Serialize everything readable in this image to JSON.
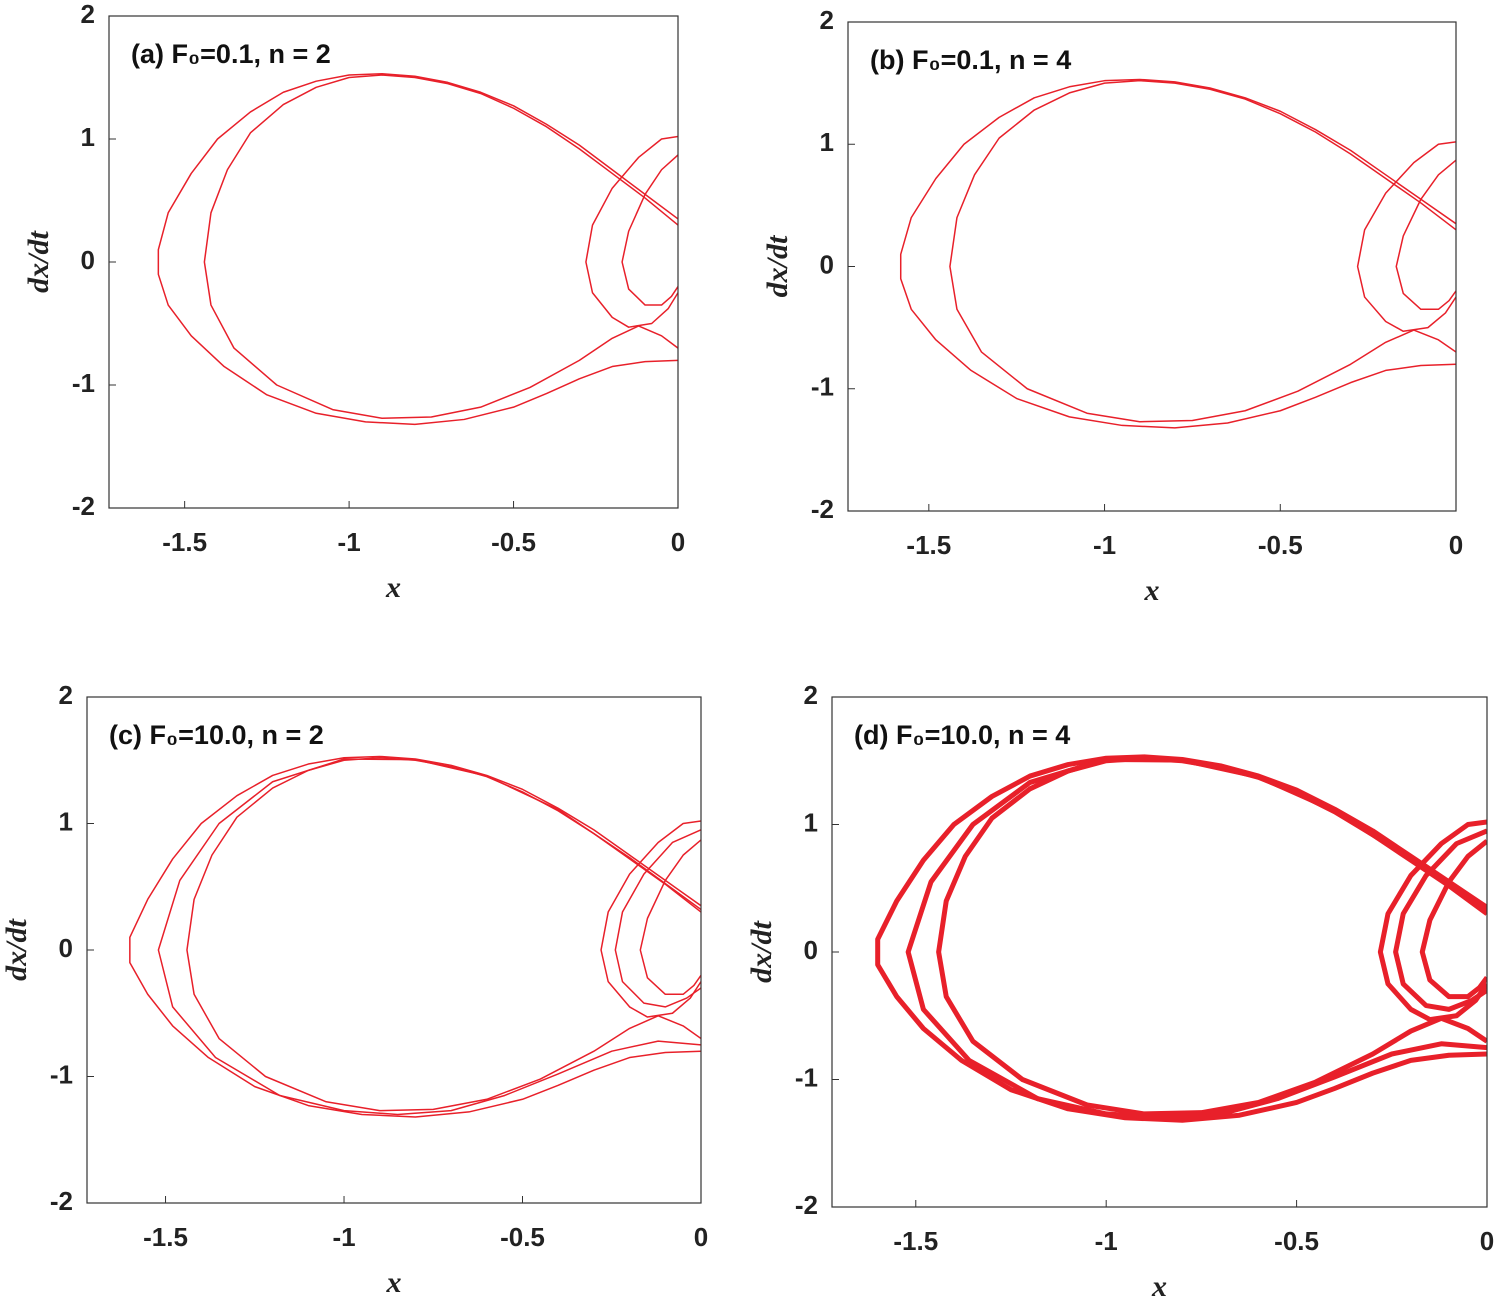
{
  "chart_data": [
    {
      "type": "line",
      "annotation": "(a) F₀=0.1, n = 2",
      "x_label": "x",
      "y_label": "dx/dt",
      "color": "#e8202a",
      "line_width": 1.5,
      "xlim": [
        -1.73,
        0
      ],
      "xticks": [
        -1.5,
        -1,
        -0.5,
        0
      ],
      "ylim": [
        -2,
        2
      ],
      "yticks": [
        -2,
        -1,
        0,
        1,
        2
      ],
      "series": [
        {
          "x": [
            0,
            -0.1,
            -0.2,
            -0.3,
            -0.4,
            -0.5,
            -0.6,
            -0.7,
            -0.8,
            -0.9,
            -1.0,
            -1.1,
            -1.2,
            -1.3,
            -1.4,
            -1.48,
            -1.55,
            -1.58,
            -1.58,
            -1.55,
            -1.48,
            -1.38,
            -1.25,
            -1.1,
            -0.95,
            -0.8,
            -0.65,
            -0.5,
            -0.4,
            -0.3,
            -0.2,
            -0.1,
            0
          ],
          "values": [
            0.35,
            0.55,
            0.75,
            0.95,
            1.12,
            1.27,
            1.38,
            1.46,
            1.51,
            1.53,
            1.52,
            1.47,
            1.38,
            1.22,
            1.0,
            0.72,
            0.4,
            0.1,
            -0.1,
            -0.35,
            -0.6,
            -0.85,
            -1.08,
            -1.23,
            -1.3,
            -1.32,
            -1.28,
            -1.18,
            -1.07,
            -0.95,
            -0.85,
            -0.81,
            -0.8
          ]
        },
        {
          "x": [
            0,
            -0.1,
            -0.2,
            -0.3,
            -0.4,
            -0.5,
            -0.6,
            -0.7,
            -0.8,
            -0.9,
            -1.0,
            -1.1,
            -1.2,
            -1.3,
            -1.37,
            -1.42,
            -1.44,
            -1.42,
            -1.35,
            -1.22,
            -1.05,
            -0.9,
            -0.75,
            -0.6,
            -0.45,
            -0.3,
            -0.2,
            -0.12,
            -0.05,
            0
          ],
          "values": [
            0.3,
            0.52,
            0.72,
            0.92,
            1.1,
            1.25,
            1.37,
            1.45,
            1.5,
            1.52,
            1.5,
            1.42,
            1.28,
            1.05,
            0.75,
            0.4,
            0.0,
            -0.35,
            -0.7,
            -1.0,
            -1.2,
            -1.27,
            -1.26,
            -1.18,
            -1.02,
            -0.8,
            -0.62,
            -0.52,
            -0.6,
            -0.7
          ]
        },
        {
          "x": [
            0,
            -0.05,
            -0.12,
            -0.2,
            -0.26,
            -0.28,
            -0.26,
            -0.2,
            -0.15,
            -0.08,
            -0.03,
            0
          ],
          "values": [
            1.02,
            1.0,
            0.85,
            0.6,
            0.3,
            0.0,
            -0.25,
            -0.45,
            -0.53,
            -0.5,
            -0.38,
            -0.25
          ]
        },
        {
          "x": [
            0,
            -0.05,
            -0.1,
            -0.15,
            -0.17,
            -0.15,
            -0.1,
            -0.05,
            -0.02,
            0
          ],
          "values": [
            0.87,
            0.75,
            0.55,
            0.25,
            0.0,
            -0.22,
            -0.35,
            -0.35,
            -0.28,
            -0.2
          ]
        }
      ]
    },
    {
      "type": "line",
      "annotation": "(b) F₀=0.1, n = 4",
      "x_label": "x",
      "y_label": "dx/dt",
      "color": "#e8202a",
      "line_width": 1.5,
      "xlim": [
        -1.73,
        0
      ],
      "xticks": [
        -1.5,
        -1,
        -0.5,
        0
      ],
      "ylim": [
        -2,
        2
      ],
      "yticks": [
        -2,
        -1,
        0,
        1,
        2
      ],
      "series": [
        {
          "x": [
            0,
            -0.1,
            -0.2,
            -0.3,
            -0.4,
            -0.5,
            -0.6,
            -0.7,
            -0.8,
            -0.9,
            -1.0,
            -1.1,
            -1.2,
            -1.3,
            -1.4,
            -1.48,
            -1.55,
            -1.58,
            -1.58,
            -1.55,
            -1.48,
            -1.38,
            -1.25,
            -1.1,
            -0.95,
            -0.8,
            -0.65,
            -0.5,
            -0.4,
            -0.3,
            -0.2,
            -0.1,
            0
          ],
          "values": [
            0.35,
            0.55,
            0.75,
            0.95,
            1.12,
            1.27,
            1.38,
            1.46,
            1.51,
            1.53,
            1.52,
            1.47,
            1.38,
            1.22,
            1.0,
            0.72,
            0.4,
            0.1,
            -0.1,
            -0.35,
            -0.6,
            -0.85,
            -1.08,
            -1.23,
            -1.3,
            -1.32,
            -1.28,
            -1.18,
            -1.07,
            -0.95,
            -0.85,
            -0.81,
            -0.8
          ]
        },
        {
          "x": [
            0,
            -0.1,
            -0.2,
            -0.3,
            -0.4,
            -0.5,
            -0.6,
            -0.7,
            -0.8,
            -0.9,
            -1.0,
            -1.1,
            -1.2,
            -1.3,
            -1.37,
            -1.42,
            -1.44,
            -1.42,
            -1.35,
            -1.22,
            -1.05,
            -0.9,
            -0.75,
            -0.6,
            -0.45,
            -0.3,
            -0.2,
            -0.12,
            -0.05,
            0
          ],
          "values": [
            0.3,
            0.52,
            0.72,
            0.92,
            1.1,
            1.25,
            1.37,
            1.45,
            1.5,
            1.52,
            1.5,
            1.42,
            1.28,
            1.05,
            0.75,
            0.4,
            0.0,
            -0.35,
            -0.7,
            -1.0,
            -1.2,
            -1.27,
            -1.26,
            -1.18,
            -1.02,
            -0.8,
            -0.62,
            -0.52,
            -0.6,
            -0.7
          ]
        },
        {
          "x": [
            0,
            -0.05,
            -0.12,
            -0.2,
            -0.26,
            -0.28,
            -0.26,
            -0.2,
            -0.15,
            -0.08,
            -0.03,
            0
          ],
          "values": [
            1.02,
            1.0,
            0.85,
            0.6,
            0.3,
            0.0,
            -0.25,
            -0.45,
            -0.53,
            -0.5,
            -0.38,
            -0.25
          ]
        },
        {
          "x": [
            0,
            -0.05,
            -0.1,
            -0.15,
            -0.17,
            -0.15,
            -0.1,
            -0.05,
            -0.02,
            0
          ],
          "values": [
            0.87,
            0.75,
            0.55,
            0.25,
            0.0,
            -0.22,
            -0.35,
            -0.35,
            -0.28,
            -0.2
          ]
        }
      ]
    },
    {
      "type": "line",
      "annotation": "(c) F₀=10.0, n = 2",
      "x_label": "x",
      "y_label": "dx/dt",
      "color": "#e8202a",
      "line_width": 1.5,
      "xlim": [
        -1.72,
        0
      ],
      "xticks": [
        -1.5,
        -1,
        -0.5,
        0
      ],
      "ylim": [
        -2,
        2
      ],
      "yticks": [
        -2,
        -1,
        0,
        1,
        2
      ],
      "series": [
        {
          "x": [
            0,
            -0.1,
            -0.2,
            -0.3,
            -0.4,
            -0.5,
            -0.6,
            -0.7,
            -0.8,
            -0.9,
            -1.0,
            -1.1,
            -1.2,
            -1.3,
            -1.4,
            -1.48,
            -1.55,
            -1.6,
            -1.6,
            -1.55,
            -1.48,
            -1.38,
            -1.25,
            -1.1,
            -0.95,
            -0.8,
            -0.65,
            -0.5,
            -0.4,
            -0.3,
            -0.2,
            -0.1,
            0
          ],
          "values": [
            0.35,
            0.55,
            0.75,
            0.95,
            1.12,
            1.27,
            1.38,
            1.46,
            1.51,
            1.53,
            1.52,
            1.47,
            1.38,
            1.22,
            1.0,
            0.72,
            0.4,
            0.1,
            -0.1,
            -0.35,
            -0.6,
            -0.85,
            -1.08,
            -1.23,
            -1.3,
            -1.32,
            -1.28,
            -1.18,
            -1.07,
            -0.95,
            -0.85,
            -0.81,
            -0.8
          ]
        },
        {
          "x": [
            0,
            -0.2,
            -0.4,
            -0.6,
            -0.8,
            -1.0,
            -1.2,
            -1.35,
            -1.46,
            -1.52,
            -1.48,
            -1.36,
            -1.18,
            -1.0,
            -0.85,
            -0.7,
            -0.55,
            -0.4,
            -0.25,
            -0.12,
            0
          ],
          "values": [
            0.32,
            0.73,
            1.11,
            1.375,
            1.505,
            1.51,
            1.33,
            1.0,
            0.55,
            0.0,
            -0.45,
            -0.85,
            -1.15,
            -1.27,
            -1.3,
            -1.27,
            -1.15,
            -0.98,
            -0.8,
            -0.72,
            -0.75
          ]
        },
        {
          "x": [
            0,
            -0.1,
            -0.2,
            -0.3,
            -0.4,
            -0.5,
            -0.6,
            -0.7,
            -0.8,
            -0.9,
            -1.0,
            -1.1,
            -1.2,
            -1.3,
            -1.37,
            -1.42,
            -1.44,
            -1.42,
            -1.35,
            -1.22,
            -1.05,
            -0.9,
            -0.75,
            -0.6,
            -0.45,
            -0.3,
            -0.2,
            -0.12,
            -0.05,
            0
          ],
          "values": [
            0.3,
            0.52,
            0.72,
            0.92,
            1.1,
            1.25,
            1.37,
            1.45,
            1.5,
            1.52,
            1.5,
            1.42,
            1.28,
            1.05,
            0.75,
            0.4,
            0.0,
            -0.35,
            -0.7,
            -1.0,
            -1.2,
            -1.27,
            -1.26,
            -1.18,
            -1.02,
            -0.8,
            -0.62,
            -0.52,
            -0.6,
            -0.7
          ]
        },
        {
          "x": [
            0,
            -0.05,
            -0.12,
            -0.2,
            -0.26,
            -0.28,
            -0.26,
            -0.2,
            -0.15,
            -0.08,
            -0.03,
            0
          ],
          "values": [
            1.02,
            1.0,
            0.85,
            0.6,
            0.3,
            0.0,
            -0.25,
            -0.45,
            -0.53,
            -0.5,
            -0.38,
            -0.25
          ]
        },
        {
          "x": [
            0,
            -0.08,
            -0.16,
            -0.22,
            -0.24,
            -0.22,
            -0.16,
            -0.1,
            -0.04,
            0
          ],
          "values": [
            0.95,
            0.85,
            0.6,
            0.3,
            0.0,
            -0.25,
            -0.42,
            -0.45,
            -0.38,
            -0.3
          ]
        },
        {
          "x": [
            0,
            -0.05,
            -0.1,
            -0.15,
            -0.17,
            -0.15,
            -0.1,
            -0.05,
            -0.02,
            0
          ],
          "values": [
            0.87,
            0.75,
            0.55,
            0.25,
            0.0,
            -0.22,
            -0.35,
            -0.35,
            -0.28,
            -0.2
          ]
        }
      ]
    },
    {
      "type": "line",
      "annotation": "(d) F₀=10.0, n = 4",
      "x_label": "x",
      "y_label": "dx/dt",
      "color": "#e8202a",
      "line_width": 5,
      "xlim": [
        -1.72,
        0
      ],
      "xticks": [
        -1.5,
        -1,
        -0.5,
        0
      ],
      "ylim": [
        -2,
        2
      ],
      "yticks": [
        -2,
        -1,
        0,
        1,
        2
      ],
      "series": [
        {
          "x": [
            0,
            -0.1,
            -0.2,
            -0.3,
            -0.4,
            -0.5,
            -0.6,
            -0.7,
            -0.8,
            -0.9,
            -1.0,
            -1.1,
            -1.2,
            -1.3,
            -1.4,
            -1.48,
            -1.55,
            -1.6,
            -1.6,
            -1.55,
            -1.48,
            -1.38,
            -1.25,
            -1.1,
            -0.95,
            -0.8,
            -0.65,
            -0.5,
            -0.4,
            -0.3,
            -0.2,
            -0.1,
            0
          ],
          "values": [
            0.35,
            0.55,
            0.75,
            0.95,
            1.12,
            1.27,
            1.38,
            1.46,
            1.51,
            1.53,
            1.52,
            1.47,
            1.38,
            1.22,
            1.0,
            0.72,
            0.4,
            0.1,
            -0.1,
            -0.35,
            -0.6,
            -0.85,
            -1.08,
            -1.23,
            -1.3,
            -1.32,
            -1.28,
            -1.18,
            -1.07,
            -0.95,
            -0.85,
            -0.81,
            -0.8
          ]
        },
        {
          "x": [
            0,
            -0.2,
            -0.4,
            -0.6,
            -0.8,
            -1.0,
            -1.2,
            -1.35,
            -1.46,
            -1.52,
            -1.48,
            -1.36,
            -1.18,
            -1.0,
            -0.85,
            -0.7,
            -0.55,
            -0.4,
            -0.25,
            -0.12,
            0
          ],
          "values": [
            0.32,
            0.73,
            1.11,
            1.375,
            1.505,
            1.51,
            1.33,
            1.0,
            0.55,
            0.0,
            -0.45,
            -0.85,
            -1.15,
            -1.27,
            -1.3,
            -1.27,
            -1.15,
            -0.98,
            -0.8,
            -0.72,
            -0.75
          ]
        },
        {
          "x": [
            0,
            -0.1,
            -0.2,
            -0.3,
            -0.4,
            -0.5,
            -0.6,
            -0.7,
            -0.8,
            -0.9,
            -1.0,
            -1.1,
            -1.2,
            -1.3,
            -1.37,
            -1.42,
            -1.44,
            -1.42,
            -1.35,
            -1.22,
            -1.05,
            -0.9,
            -0.75,
            -0.6,
            -0.45,
            -0.3,
            -0.2,
            -0.12,
            -0.05,
            0
          ],
          "values": [
            0.3,
            0.52,
            0.72,
            0.92,
            1.1,
            1.25,
            1.37,
            1.45,
            1.5,
            1.52,
            1.5,
            1.42,
            1.28,
            1.05,
            0.75,
            0.4,
            0.0,
            -0.35,
            -0.7,
            -1.0,
            -1.2,
            -1.27,
            -1.26,
            -1.18,
            -1.02,
            -0.8,
            -0.62,
            -0.52,
            -0.6,
            -0.7
          ]
        },
        {
          "x": [
            0,
            -0.05,
            -0.12,
            -0.2,
            -0.26,
            -0.28,
            -0.26,
            -0.2,
            -0.15,
            -0.08,
            -0.03,
            0
          ],
          "values": [
            1.02,
            1.0,
            0.85,
            0.6,
            0.3,
            0.0,
            -0.25,
            -0.45,
            -0.53,
            -0.5,
            -0.38,
            -0.25
          ]
        },
        {
          "x": [
            0,
            -0.08,
            -0.16,
            -0.22,
            -0.24,
            -0.22,
            -0.16,
            -0.1,
            -0.04,
            0
          ],
          "values": [
            0.95,
            0.85,
            0.6,
            0.3,
            0.0,
            -0.25,
            -0.42,
            -0.45,
            -0.38,
            -0.3
          ]
        },
        {
          "x": [
            0,
            -0.05,
            -0.1,
            -0.15,
            -0.17,
            -0.15,
            -0.1,
            -0.05,
            -0.02,
            0
          ],
          "values": [
            0.87,
            0.75,
            0.55,
            0.25,
            0.0,
            -0.22,
            -0.35,
            -0.35,
            -0.28,
            -0.2
          ]
        }
      ]
    }
  ]
}
